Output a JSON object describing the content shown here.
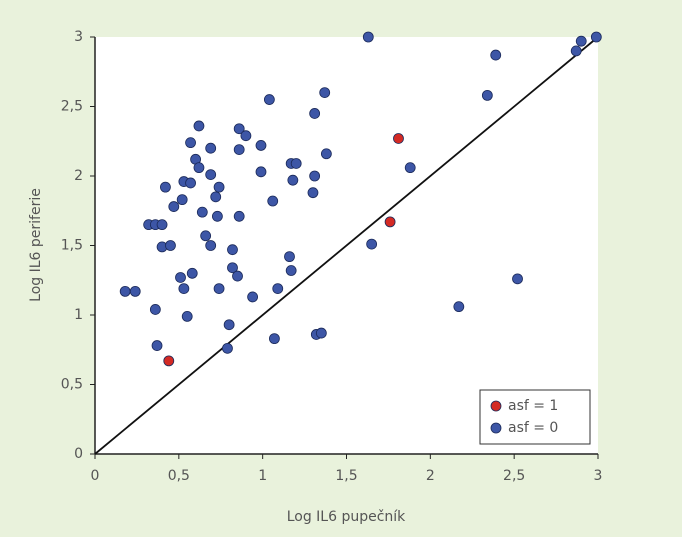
{
  "chart_data": {
    "type": "scatter",
    "x_label": "Log IL6 pupečník",
    "y_label": "Log IL6 periferie",
    "xlim": [
      0,
      3
    ],
    "ylim": [
      0,
      3
    ],
    "xticks": [
      0,
      {
        "value": 0.5,
        "label": "0,5"
      },
      1,
      {
        "value": 1.5,
        "label": "1,5"
      },
      2,
      {
        "value": 2.5,
        "label": "2,5"
      },
      3
    ],
    "yticks": [
      0,
      {
        "value": 0.5,
        "label": "0,5"
      },
      1,
      {
        "value": 1.5,
        "label": "1,5"
      },
      2,
      {
        "value": 2.5,
        "label": "2,5"
      },
      3
    ],
    "legend": "bottom-right",
    "series": [
      {
        "name": "asf = 1",
        "color": "#d42a24",
        "x": [
          0.44,
          1.76,
          1.81
        ],
        "y": [
          0.67,
          1.67,
          2.27
        ]
      },
      {
        "name": "asf = 0",
        "color": "#3d56a6",
        "x": [
          0.18,
          0.24,
          0.32,
          0.36,
          0.4,
          0.42,
          0.4,
          0.45,
          0.47,
          0.52,
          0.53,
          0.57,
          0.57,
          0.6,
          0.62,
          0.62,
          0.64,
          0.66,
          0.69,
          0.69,
          0.69,
          0.72,
          0.74,
          0.73,
          0.51,
          0.53,
          0.58,
          0.55,
          0.74,
          0.82,
          0.82,
          0.85,
          0.86,
          0.86,
          0.9,
          0.86,
          0.8,
          0.79,
          0.94,
          0.99,
          0.99,
          1.04,
          1.06,
          1.09,
          1.07,
          1.17,
          1.2,
          1.18,
          1.16,
          1.17,
          1.31,
          1.31,
          1.3,
          1.37,
          1.38,
          1.32,
          1.35,
          0.36,
          0.37,
          1.63,
          1.88,
          1.65,
          2.34,
          2.39,
          2.52,
          2.17,
          2.87,
          2.9,
          2.99
        ],
        "y": [
          1.17,
          1.17,
          1.65,
          1.65,
          1.65,
          1.92,
          1.49,
          1.5,
          1.78,
          1.83,
          1.96,
          2.24,
          1.95,
          2.12,
          2.36,
          2.06,
          1.74,
          1.57,
          2.2,
          2.01,
          1.5,
          1.85,
          1.92,
          1.71,
          1.27,
          1.19,
          1.3,
          0.99,
          1.19,
          1.47,
          1.34,
          1.28,
          2.34,
          2.19,
          2.29,
          1.71,
          0.93,
          0.76,
          1.13,
          2.22,
          2.03,
          2.55,
          1.82,
          1.19,
          0.83,
          2.09,
          2.09,
          1.97,
          1.42,
          1.32,
          2.45,
          2.0,
          1.88,
          2.6,
          2.16,
          0.86,
          0.87,
          1.04,
          0.78,
          3.0,
          2.06,
          1.51,
          2.58,
          2.87,
          1.26,
          1.06,
          2.9,
          2.97,
          3.0
        ]
      }
    ]
  }
}
